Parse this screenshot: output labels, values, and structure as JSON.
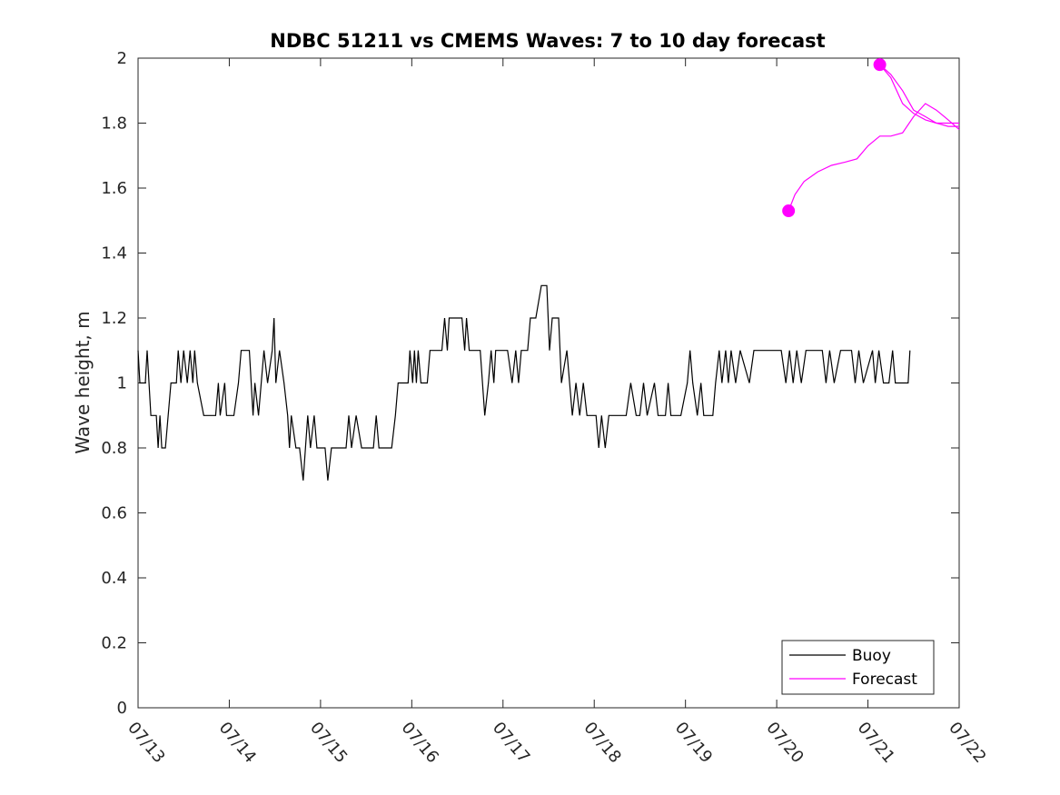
{
  "chart_data": {
    "type": "line",
    "title": "NDBC 51211 vs CMEMS Waves: 7 to 10 day forecast",
    "xlabel": "",
    "ylabel": "Wave height, m",
    "x_tick_labels": [
      "07/13",
      "07/14",
      "07/15",
      "07/16",
      "07/17",
      "07/18",
      "07/19",
      "07/20",
      "07/21",
      "07/22"
    ],
    "y_tick_labels": [
      "0",
      "0.2",
      "0.4",
      "0.6",
      "0.8",
      "1",
      "1.2",
      "1.4",
      "1.6",
      "1.8",
      "2"
    ],
    "xlim": [
      0,
      9
    ],
    "ylim": [
      0,
      2
    ],
    "x_units": "days since 07/13",
    "grid": false,
    "legend": {
      "position": "bottom-right",
      "entries": [
        "Buoy",
        "Forecast"
      ]
    },
    "series": [
      {
        "name": "Buoy",
        "color": "#000000",
        "points": [
          [
            0.0,
            1.1
          ],
          [
            0.02,
            1.0
          ],
          [
            0.08,
            1.0
          ],
          [
            0.1,
            1.1
          ],
          [
            0.14,
            0.9
          ],
          [
            0.2,
            0.9
          ],
          [
            0.22,
            0.8
          ],
          [
            0.24,
            0.9
          ],
          [
            0.26,
            0.8
          ],
          [
            0.3,
            0.8
          ],
          [
            0.36,
            1.0
          ],
          [
            0.42,
            1.0
          ],
          [
            0.44,
            1.1
          ],
          [
            0.47,
            1.0
          ],
          [
            0.5,
            1.1
          ],
          [
            0.54,
            1.0
          ],
          [
            0.57,
            1.1
          ],
          [
            0.6,
            1.0
          ],
          [
            0.62,
            1.1
          ],
          [
            0.65,
            1.0
          ],
          [
            0.72,
            0.9
          ],
          [
            0.85,
            0.9
          ],
          [
            0.88,
            1.0
          ],
          [
            0.9,
            0.9
          ],
          [
            0.95,
            1.0
          ],
          [
            0.97,
            0.9
          ],
          [
            1.05,
            0.9
          ],
          [
            1.1,
            1.0
          ],
          [
            1.13,
            1.1
          ],
          [
            1.22,
            1.1
          ],
          [
            1.26,
            0.9
          ],
          [
            1.28,
            1.0
          ],
          [
            1.32,
            0.9
          ],
          [
            1.38,
            1.1
          ],
          [
            1.42,
            1.0
          ],
          [
            1.47,
            1.1
          ],
          [
            1.49,
            1.2
          ],
          [
            1.51,
            1.0
          ],
          [
            1.55,
            1.1
          ],
          [
            1.6,
            1.0
          ],
          [
            1.64,
            0.9
          ],
          [
            1.66,
            0.8
          ],
          [
            1.68,
            0.9
          ],
          [
            1.73,
            0.8
          ],
          [
            1.77,
            0.8
          ],
          [
            1.81,
            0.7
          ],
          [
            1.86,
            0.9
          ],
          [
            1.89,
            0.8
          ],
          [
            1.93,
            0.9
          ],
          [
            1.96,
            0.8
          ],
          [
            2.05,
            0.8
          ],
          [
            2.08,
            0.7
          ],
          [
            2.12,
            0.8
          ],
          [
            2.28,
            0.8
          ],
          [
            2.31,
            0.9
          ],
          [
            2.34,
            0.8
          ],
          [
            2.39,
            0.9
          ],
          [
            2.45,
            0.8
          ],
          [
            2.58,
            0.8
          ],
          [
            2.61,
            0.9
          ],
          [
            2.64,
            0.8
          ],
          [
            2.78,
            0.8
          ],
          [
            2.82,
            0.9
          ],
          [
            2.85,
            1.0
          ],
          [
            2.96,
            1.0
          ],
          [
            2.98,
            1.1
          ],
          [
            3.01,
            1.0
          ],
          [
            3.03,
            1.1
          ],
          [
            3.05,
            1.0
          ],
          [
            3.07,
            1.1
          ],
          [
            3.1,
            1.0
          ],
          [
            3.17,
            1.0
          ],
          [
            3.2,
            1.1
          ],
          [
            3.33,
            1.1
          ],
          [
            3.36,
            1.2
          ],
          [
            3.39,
            1.1
          ],
          [
            3.41,
            1.2
          ],
          [
            3.55,
            1.2
          ],
          [
            3.58,
            1.1
          ],
          [
            3.6,
            1.2
          ],
          [
            3.63,
            1.1
          ],
          [
            3.75,
            1.1
          ],
          [
            3.8,
            0.9
          ],
          [
            3.84,
            1.0
          ],
          [
            3.87,
            1.1
          ],
          [
            3.9,
            1.0
          ],
          [
            3.92,
            1.1
          ],
          [
            4.05,
            1.1
          ],
          [
            4.1,
            1.0
          ],
          [
            4.14,
            1.1
          ],
          [
            4.17,
            1.0
          ],
          [
            4.2,
            1.1
          ],
          [
            4.27,
            1.1
          ],
          [
            4.3,
            1.2
          ],
          [
            4.36,
            1.2
          ],
          [
            4.42,
            1.3
          ],
          [
            4.48,
            1.3
          ],
          [
            4.51,
            1.1
          ],
          [
            4.54,
            1.2
          ],
          [
            4.61,
            1.2
          ],
          [
            4.64,
            1.0
          ],
          [
            4.7,
            1.1
          ],
          [
            4.73,
            1.0
          ],
          [
            4.76,
            0.9
          ],
          [
            4.8,
            1.0
          ],
          [
            4.84,
            0.9
          ],
          [
            4.88,
            1.0
          ],
          [
            4.92,
            0.9
          ],
          [
            5.02,
            0.9
          ],
          [
            5.05,
            0.8
          ],
          [
            5.08,
            0.9
          ],
          [
            5.12,
            0.8
          ],
          [
            5.16,
            0.9
          ],
          [
            5.35,
            0.9
          ],
          [
            5.4,
            1.0
          ],
          [
            5.46,
            0.9
          ],
          [
            5.5,
            0.9
          ],
          [
            5.54,
            1.0
          ],
          [
            5.58,
            0.9
          ],
          [
            5.66,
            1.0
          ],
          [
            5.7,
            0.9
          ],
          [
            5.78,
            0.9
          ],
          [
            5.81,
            1.0
          ],
          [
            5.84,
            0.9
          ],
          [
            5.95,
            0.9
          ],
          [
            6.02,
            1.0
          ],
          [
            6.05,
            1.1
          ],
          [
            6.08,
            1.0
          ],
          [
            6.13,
            0.9
          ],
          [
            6.17,
            1.0
          ],
          [
            6.2,
            0.9
          ],
          [
            6.3,
            0.9
          ],
          [
            6.33,
            1.0
          ],
          [
            6.37,
            1.1
          ],
          [
            6.4,
            1.0
          ],
          [
            6.44,
            1.1
          ],
          [
            6.47,
            1.0
          ],
          [
            6.5,
            1.1
          ],
          [
            6.55,
            1.0
          ],
          [
            6.6,
            1.1
          ],
          [
            6.7,
            1.0
          ],
          [
            6.75,
            1.1
          ],
          [
            7.05,
            1.1
          ],
          [
            7.1,
            1.0
          ],
          [
            7.14,
            1.1
          ],
          [
            7.18,
            1.0
          ],
          [
            7.22,
            1.1
          ],
          [
            7.27,
            1.0
          ],
          [
            7.32,
            1.1
          ],
          [
            7.5,
            1.1
          ],
          [
            7.54,
            1.0
          ],
          [
            7.58,
            1.1
          ],
          [
            7.63,
            1.0
          ],
          [
            7.7,
            1.1
          ],
          [
            7.82,
            1.1
          ],
          [
            7.86,
            1.0
          ],
          [
            7.9,
            1.1
          ],
          [
            7.95,
            1.0
          ],
          [
            8.05,
            1.1
          ],
          [
            8.08,
            1.0
          ],
          [
            8.12,
            1.1
          ],
          [
            8.17,
            1.0
          ],
          [
            8.23,
            1.0
          ],
          [
            8.27,
            1.1
          ],
          [
            8.3,
            1.0
          ],
          [
            8.44,
            1.0
          ],
          [
            8.46,
            1.1
          ]
        ]
      },
      {
        "name": "Forecast",
        "color": "#ff00ff",
        "segments": [
          [
            [
              7.13,
              1.53
            ],
            [
              7.2,
              1.58
            ],
            [
              7.3,
              1.62
            ],
            [
              7.45,
              1.65
            ],
            [
              7.6,
              1.67
            ],
            [
              7.75,
              1.68
            ],
            [
              7.88,
              1.69
            ],
            [
              8.0,
              1.73
            ],
            [
              8.13,
              1.76
            ],
            [
              8.25,
              1.76
            ],
            [
              8.38,
              1.77
            ],
            [
              8.5,
              1.82
            ],
            [
              8.63,
              1.86
            ],
            [
              8.75,
              1.84
            ],
            [
              8.88,
              1.81
            ],
            [
              9.0,
              1.78
            ]
          ],
          [
            [
              8.13,
              1.98
            ],
            [
              8.25,
              1.95
            ],
            [
              8.38,
              1.9
            ],
            [
              8.5,
              1.84
            ],
            [
              8.63,
              1.82
            ],
            [
              8.75,
              1.8
            ],
            [
              8.88,
              1.79
            ],
            [
              9.0,
              1.79
            ]
          ],
          [
            [
              8.13,
              1.98
            ],
            [
              8.25,
              1.94
            ],
            [
              8.38,
              1.86
            ],
            [
              8.5,
              1.83
            ],
            [
              8.63,
              1.81
            ],
            [
              8.75,
              1.8
            ],
            [
              8.88,
              1.8
            ],
            [
              9.0,
              1.8
            ]
          ]
        ],
        "markers": [
          [
            7.13,
            1.53
          ],
          [
            8.13,
            1.98
          ]
        ]
      }
    ]
  }
}
